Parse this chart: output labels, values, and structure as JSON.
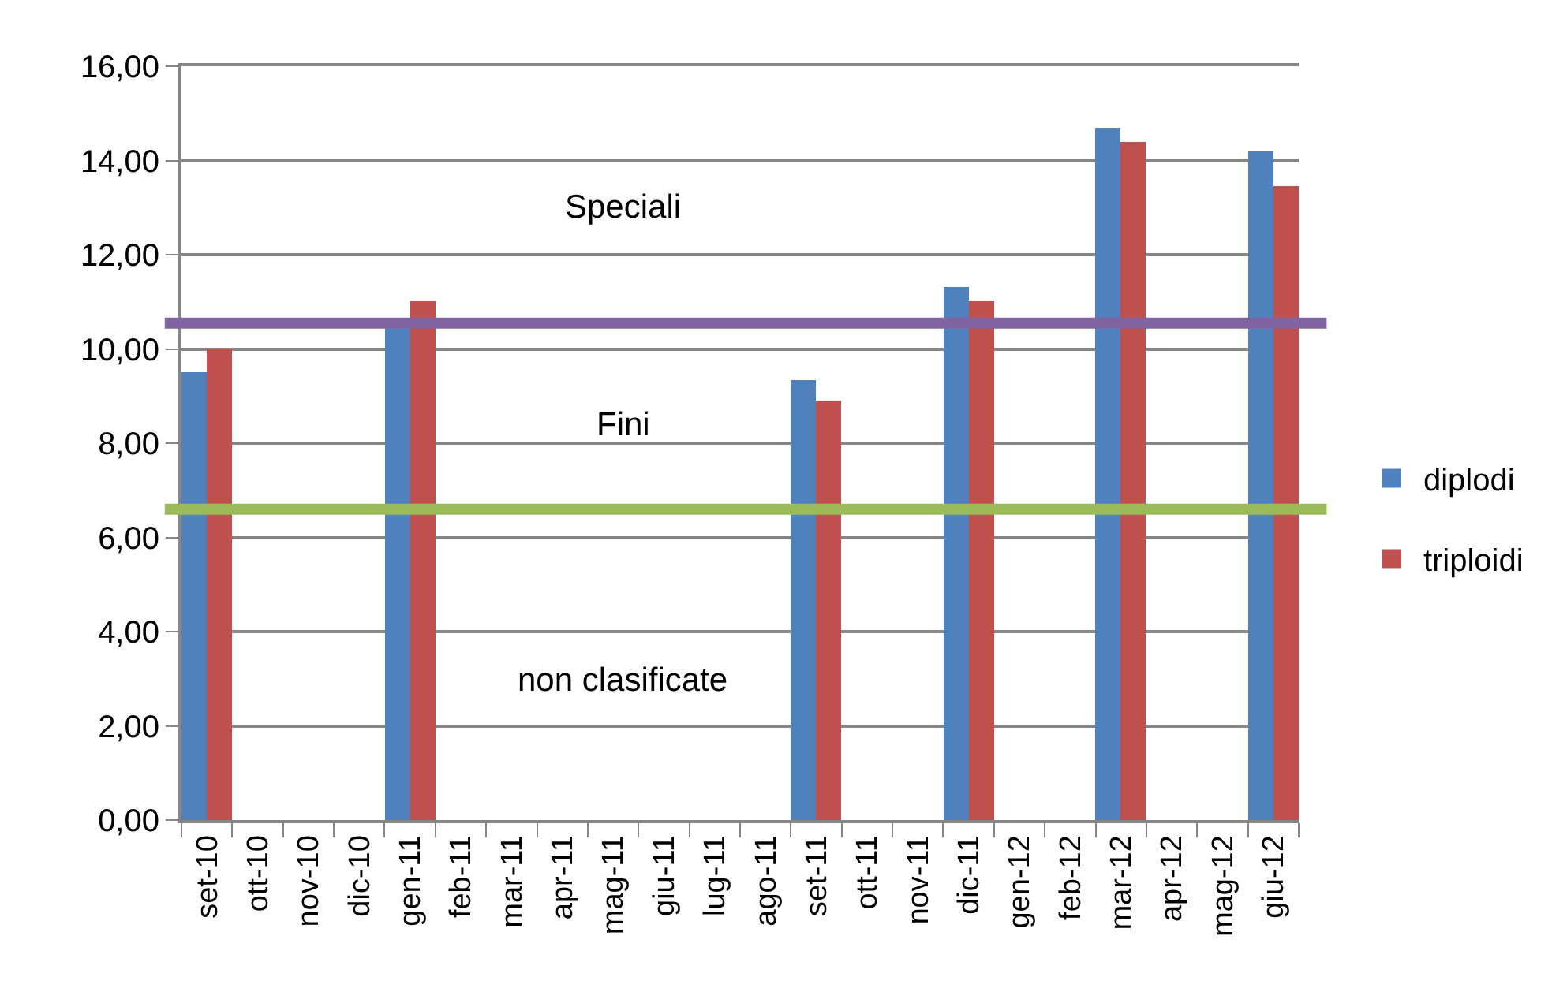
{
  "chart_data": {
    "type": "bar",
    "categories": [
      "set-10",
      "ott-10",
      "nov-10",
      "dic-10",
      "gen-11",
      "feb-11",
      "mar-11",
      "apr-11",
      "mag-11",
      "giu-11",
      "lug-11",
      "ago-11",
      "set-11",
      "ott-11",
      "nov-11",
      "dic-11",
      "gen-12",
      "feb-12",
      "mar-12",
      "apr-12",
      "mag-12",
      "giu-12"
    ],
    "series": [
      {
        "name": "diplodi",
        "color": "#4f81bd",
        "values": [
          9.5,
          null,
          null,
          null,
          10.5,
          null,
          null,
          null,
          null,
          null,
          null,
          null,
          9.35,
          null,
          null,
          11.3,
          null,
          null,
          14.7,
          null,
          null,
          14.2
        ]
      },
      {
        "name": "triploidi",
        "color": "#c0504d",
        "values": [
          10.0,
          null,
          null,
          null,
          11.0,
          null,
          null,
          null,
          null,
          null,
          null,
          null,
          8.9,
          null,
          null,
          11.0,
          null,
          null,
          14.4,
          null,
          null,
          13.45
        ]
      }
    ],
    "ylim": [
      0,
      16
    ],
    "yticks": [
      {
        "value": 0,
        "label": "0,00"
      },
      {
        "value": 2,
        "label": "2,00"
      },
      {
        "value": 4,
        "label": "4,00"
      },
      {
        "value": 6,
        "label": "6,00"
      },
      {
        "value": 8,
        "label": "8,00"
      },
      {
        "value": 10,
        "label": "10,00"
      },
      {
        "value": 12,
        "label": "12,00"
      },
      {
        "value": 14,
        "label": "14,00"
      },
      {
        "value": 16,
        "label": "16,00"
      }
    ],
    "ref_lines": [
      {
        "axis": "y",
        "value": 10.55,
        "color": "#8064a2",
        "line_style": "solid"
      },
      {
        "axis": "y",
        "value": 6.6,
        "color": "#9bbb59",
        "line_style": "solid"
      }
    ],
    "annotations": [
      "Speciali",
      "Fini",
      "non clasificate"
    ],
    "grid": "y",
    "legend": "right"
  }
}
